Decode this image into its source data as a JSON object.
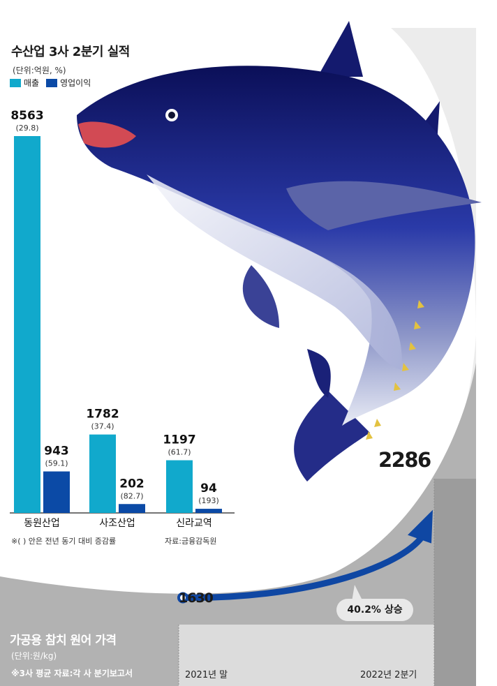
{
  "chart_data": [
    {
      "type": "bar",
      "title": "수산업 3사 2분기 실적",
      "unit_note": "(단위:억원, %)",
      "categories": [
        "동원산업",
        "사조산업",
        "신라교역"
      ],
      "series": [
        {
          "name": "매출",
          "values": [
            8563,
            1782,
            1197
          ],
          "change_labels": [
            "(29.8)",
            "(37.4)",
            "(61.7)"
          ],
          "color": "#11a9cc"
        },
        {
          "name": "영업이익",
          "values": [
            943,
            202,
            94
          ],
          "change_labels": [
            "(59.1)",
            "(82.7)",
            "(193)"
          ],
          "color": "#0b4aa6"
        }
      ],
      "legend_position": "top-left",
      "footnote": "※( ) 안은 전년 동기 대비 증감률",
      "source": "자료:금융감독원",
      "ylim": [
        0,
        8563
      ],
      "grid": false
    },
    {
      "type": "line",
      "title": "가공용 참치 원어 가격",
      "unit_note": "(단위:원/kg)",
      "note": "※3사 평균   자료:각 사 분기보고서",
      "x": [
        "2021년 말",
        "2022년 2분기"
      ],
      "values": [
        1630,
        2286
      ],
      "callout": "40.2% 상승",
      "grid": false
    }
  ],
  "colors": {
    "sales": "#11a9cc",
    "profit": "#0b4aa6",
    "arrow": "#0f47a3",
    "panel": "#b2b2b2",
    "panel_column": "#d9d9d9"
  }
}
